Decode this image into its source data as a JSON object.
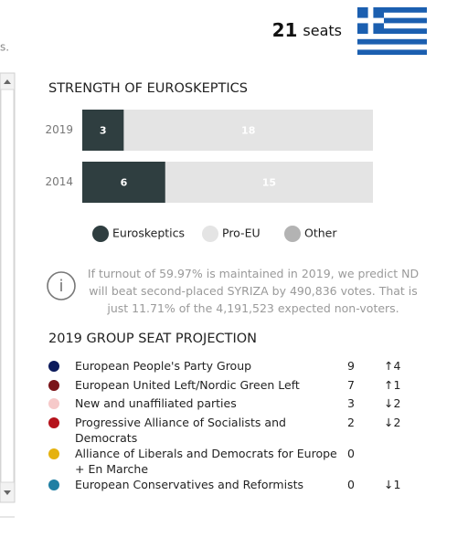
{
  "header": {
    "side_text": "s.",
    "seats": 21,
    "seats_label": "seats"
  },
  "chart_data": {
    "type": "bar",
    "orientation": "horizontal",
    "stacked": true,
    "title": "STRENGTH OF EUROSKEPTICS",
    "categories": [
      "2019",
      "2014"
    ],
    "series": [
      {
        "name": "Euroskeptics",
        "color": "#2f3e40",
        "values": [
          3,
          6
        ]
      },
      {
        "name": "Pro-EU",
        "color": "#e4e4e4",
        "values": [
          18,
          15
        ]
      },
      {
        "name": "Other",
        "color": "#b3b3b3",
        "values": [
          0,
          0
        ]
      }
    ],
    "xlim": [
      0,
      21
    ]
  },
  "note": "If turnout of 59.97% is maintained in 2019, we predict ND will beat second-placed SYRIZA by 490,836 votes. That is just 11.71% of the 4,191,523 expected non-voters.",
  "projection": {
    "title": "2019 GROUP SEAT PROJECTION",
    "rows": [
      {
        "color": "#0b1a5c",
        "group": "European People's Party Group",
        "seats": 9,
        "change": "↑4"
      },
      {
        "color": "#7a1419",
        "group": "European United Left/Nordic Green Left",
        "seats": 7,
        "change": "↑1"
      },
      {
        "color": "#f6c9c9",
        "group": "New and unaffiliated parties",
        "seats": 3,
        "change": "↓2"
      },
      {
        "color": "#b5121b",
        "group": "Progressive Alliance of Socialists and Democrats",
        "seats": 2,
        "change": "↓2"
      },
      {
        "color": "#e5b20f",
        "group": "Alliance of Liberals and Democrats for Europe + En Marche",
        "seats": 0
      },
      {
        "color": "#1f7fa3",
        "group": "European Conservatives and Reformists",
        "seats": 0,
        "change": "↓1"
      }
    ]
  }
}
